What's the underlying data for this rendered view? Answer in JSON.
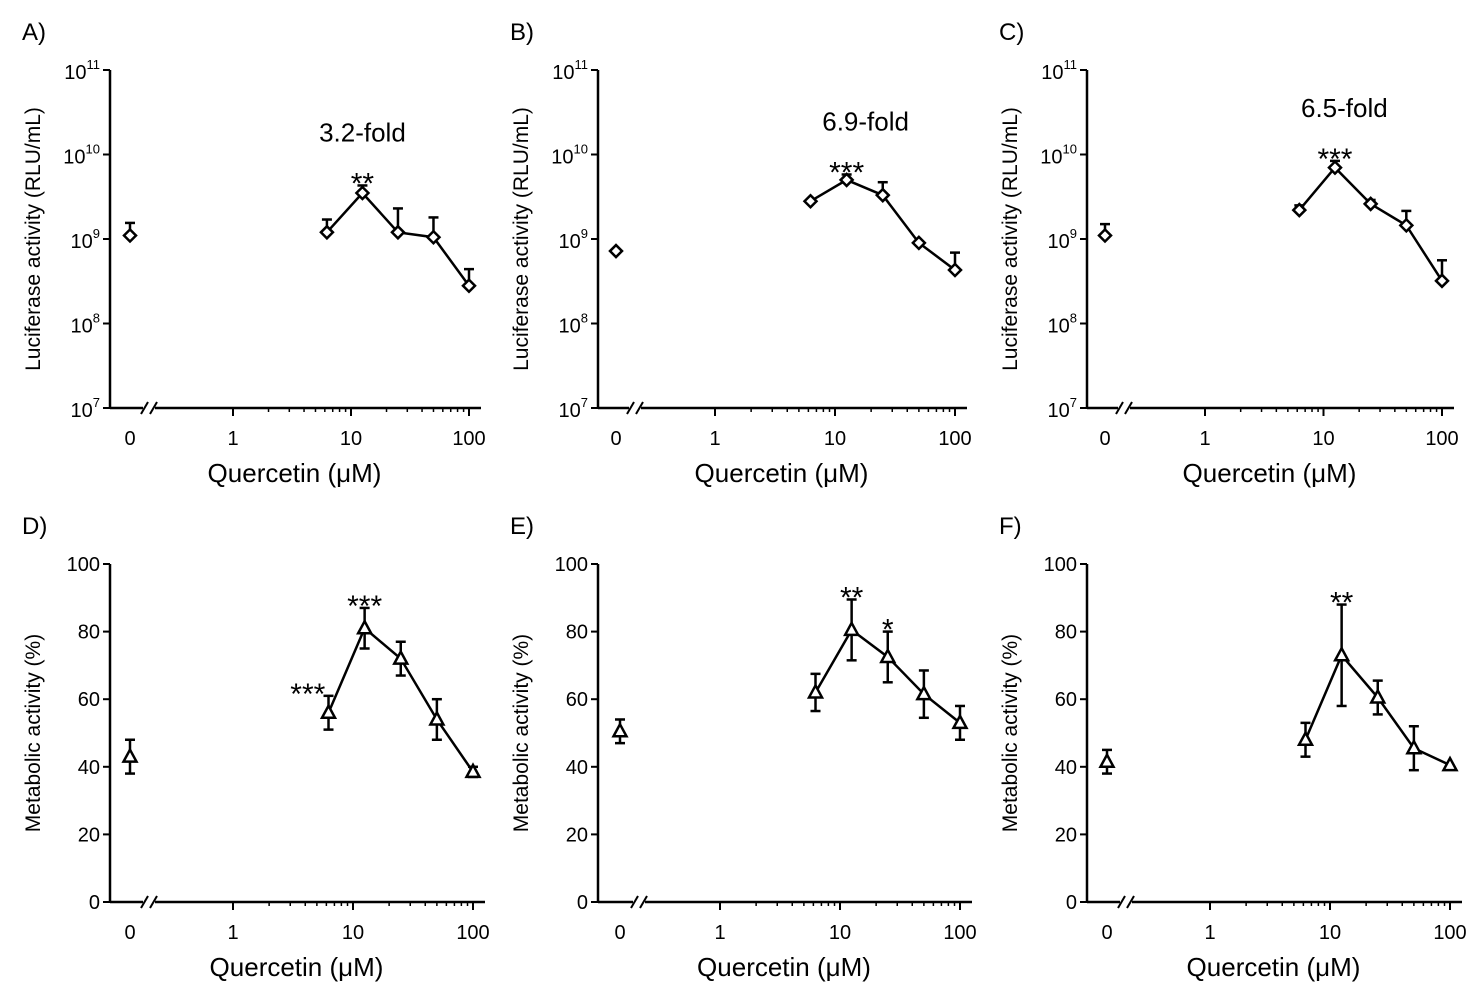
{
  "chart_data": [
    {
      "panel": "A)",
      "type": "line",
      "y_scale": "log",
      "xlabel": "Quercetin (μM)",
      "ylabel": "Luciferase activity (RLU/mL)",
      "ylim": [
        10000000,
        100000000000
      ],
      "xticks": [
        {
          "label": "0",
          "value": 0,
          "is_zero": true
        },
        {
          "label": "1",
          "value": 1
        },
        {
          "label": "10",
          "value": 10
        },
        {
          "label": "100",
          "value": 100
        }
      ],
      "yticks": [
        {
          "base": "10",
          "exp": "7",
          "value": 10000000
        },
        {
          "base": "10",
          "exp": "8",
          "value": 100000000
        },
        {
          "base": "10",
          "exp": "9",
          "value": 1000000000
        },
        {
          "base": "10",
          "exp": "10",
          "value": 10000000000
        },
        {
          "base": "10",
          "exp": "11",
          "value": 100000000000
        }
      ],
      "marker": "diamond",
      "control": {
        "x": 0,
        "y": 1100000000,
        "err": 450000000
      },
      "series": [
        {
          "x": 6.25,
          "y": 1200000000,
          "err": 500000000
        },
        {
          "x": 12.5,
          "y": 3500000000,
          "err": 800000000
        },
        {
          "x": 25,
          "y": 1200000000,
          "err": 1100000000
        },
        {
          "x": 50,
          "y": 1050000000,
          "err": 750000000
        },
        {
          "x": 100,
          "y": 280000000,
          "err": 160000000
        }
      ],
      "annotations": [
        {
          "text": "3.2-fold",
          "x": 12.5,
          "kind": "fold"
        },
        {
          "text": "**",
          "x": 12.5,
          "kind": "sig"
        }
      ]
    },
    {
      "panel": "B)",
      "type": "line",
      "y_scale": "log",
      "xlabel": "Quercetin (μM)",
      "ylabel": "Luciferase activity (RLU/mL)",
      "ylim": [
        10000000,
        100000000000
      ],
      "xticks": [
        {
          "label": "0",
          "value": 0,
          "is_zero": true
        },
        {
          "label": "1",
          "value": 1
        },
        {
          "label": "10",
          "value": 10
        },
        {
          "label": "100",
          "value": 100
        }
      ],
      "yticks": [
        {
          "base": "10",
          "exp": "7",
          "value": 10000000
        },
        {
          "base": "10",
          "exp": "8",
          "value": 100000000
        },
        {
          "base": "10",
          "exp": "9",
          "value": 1000000000
        },
        {
          "base": "10",
          "exp": "10",
          "value": 10000000000
        },
        {
          "base": "10",
          "exp": "11",
          "value": 100000000000
        }
      ],
      "marker": "diamond",
      "control": {
        "x": 0,
        "y": 720000000,
        "err": 0
      },
      "series": [
        {
          "x": 6.25,
          "y": 2800000000,
          "err": 0
        },
        {
          "x": 12.5,
          "y": 5000000000,
          "err": 800000000
        },
        {
          "x": 25,
          "y": 3300000000,
          "err": 1400000000
        },
        {
          "x": 50,
          "y": 900000000,
          "err": 0
        },
        {
          "x": 100,
          "y": 430000000,
          "err": 260000000
        }
      ],
      "annotations": [
        {
          "text": "6.9-fold",
          "x": 18,
          "kind": "fold"
        },
        {
          "text": "***",
          "x": 12.5,
          "kind": "sig"
        }
      ]
    },
    {
      "panel": "C)",
      "type": "line",
      "y_scale": "log",
      "xlabel": "Quercetin (μM)",
      "ylabel": "Luciferase activity (RLU/mL)",
      "ylim": [
        10000000,
        100000000000
      ],
      "xticks": [
        {
          "label": "0",
          "value": 0,
          "is_zero": true
        },
        {
          "label": "1",
          "value": 1
        },
        {
          "label": "10",
          "value": 10
        },
        {
          "label": "100",
          "value": 100
        }
      ],
      "yticks": [
        {
          "base": "10",
          "exp": "7",
          "value": 10000000
        },
        {
          "base": "10",
          "exp": "8",
          "value": 100000000
        },
        {
          "base": "10",
          "exp": "9",
          "value": 1000000000
        },
        {
          "base": "10",
          "exp": "10",
          "value": 10000000000
        },
        {
          "base": "10",
          "exp": "11",
          "value": 100000000000
        }
      ],
      "marker": "diamond",
      "control": {
        "x": 0,
        "y": 1100000000,
        "err": 400000000
      },
      "series": [
        {
          "x": 6.25,
          "y": 2200000000,
          "err": 300000000
        },
        {
          "x": 12.5,
          "y": 7000000000,
          "err": 1400000000
        },
        {
          "x": 25,
          "y": 2600000000,
          "err": 300000000
        },
        {
          "x": 50,
          "y": 1450000000,
          "err": 700000000
        },
        {
          "x": 100,
          "y": 320000000,
          "err": 240000000
        }
      ],
      "annotations": [
        {
          "text": "6.5-fold",
          "x": 15,
          "kind": "fold"
        },
        {
          "text": "***",
          "x": 12.5,
          "kind": "sig"
        }
      ]
    },
    {
      "panel": "D)",
      "type": "line",
      "y_scale": "linear",
      "xlabel": "Quercetin (μM)",
      "ylabel": "Metabolic activity (%)",
      "ylim": [
        0,
        100
      ],
      "xticks": [
        {
          "label": "0",
          "value": 0,
          "is_zero": true
        },
        {
          "label": "1",
          "value": 1
        },
        {
          "label": "10",
          "value": 10
        },
        {
          "label": "100",
          "value": 100
        }
      ],
      "yticks": [
        {
          "label": "0",
          "value": 0
        },
        {
          "label": "20",
          "value": 20
        },
        {
          "label": "40",
          "value": 40
        },
        {
          "label": "60",
          "value": 60
        },
        {
          "label": "80",
          "value": 80
        },
        {
          "label": "100",
          "value": 100
        }
      ],
      "marker": "triangle",
      "control": {
        "x": 0,
        "y": 43,
        "err": 5
      },
      "series": [
        {
          "x": 6.25,
          "y": 56,
          "err": 5
        },
        {
          "x": 12.5,
          "y": 81,
          "err": 6
        },
        {
          "x": 25,
          "y": 72,
          "err": 5
        },
        {
          "x": 50,
          "y": 54,
          "err": 6
        },
        {
          "x": 100,
          "y": 38.5,
          "err": 1.5
        }
      ],
      "annotations": [
        {
          "text": "***",
          "x": 4.2,
          "kind": "sig-left"
        },
        {
          "text": "***",
          "x": 12.5,
          "kind": "sig"
        }
      ]
    },
    {
      "panel": "E)",
      "type": "line",
      "y_scale": "linear",
      "xlabel": "Quercetin (μM)",
      "ylabel": "Metabolic activity (%)",
      "ylim": [
        0,
        100
      ],
      "xticks": [
        {
          "label": "0",
          "value": 0,
          "is_zero": true
        },
        {
          "label": "1",
          "value": 1
        },
        {
          "label": "10",
          "value": 10
        },
        {
          "label": "100",
          "value": 100
        }
      ],
      "yticks": [
        {
          "label": "0",
          "value": 0
        },
        {
          "label": "20",
          "value": 20
        },
        {
          "label": "40",
          "value": 40
        },
        {
          "label": "60",
          "value": 60
        },
        {
          "label": "80",
          "value": 80
        },
        {
          "label": "100",
          "value": 100
        }
      ],
      "marker": "triangle",
      "control": {
        "x": 0,
        "y": 50.5,
        "err": 3.5
      },
      "series": [
        {
          "x": 6.25,
          "y": 62,
          "err": 5.5
        },
        {
          "x": 12.5,
          "y": 80.5,
          "err": 9
        },
        {
          "x": 25,
          "y": 72.5,
          "err": 7.5
        },
        {
          "x": 50,
          "y": 61.5,
          "err": 7
        },
        {
          "x": 100,
          "y": 53,
          "err": 5
        }
      ],
      "annotations": [
        {
          "text": "**",
          "x": 12.5,
          "kind": "sig"
        },
        {
          "text": "*",
          "x": 25,
          "kind": "sig"
        }
      ]
    },
    {
      "panel": "F)",
      "type": "line",
      "y_scale": "linear",
      "xlabel": "Quercetin (μM)",
      "ylabel": "Metabolic activity (%)",
      "ylim": [
        0,
        100
      ],
      "xticks": [
        {
          "label": "0",
          "value": 0,
          "is_zero": true
        },
        {
          "label": "1",
          "value": 1
        },
        {
          "label": "10",
          "value": 10
        },
        {
          "label": "100",
          "value": 100
        }
      ],
      "yticks": [
        {
          "label": "0",
          "value": 0
        },
        {
          "label": "20",
          "value": 20
        },
        {
          "label": "40",
          "value": 40
        },
        {
          "label": "60",
          "value": 60
        },
        {
          "label": "80",
          "value": 80
        },
        {
          "label": "100",
          "value": 100
        }
      ],
      "marker": "triangle",
      "control": {
        "x": 0,
        "y": 41.5,
        "err": 3.5
      },
      "series": [
        {
          "x": 6.25,
          "y": 48,
          "err": 5
        },
        {
          "x": 12.5,
          "y": 73,
          "err": 15
        },
        {
          "x": 25,
          "y": 60.5,
          "err": 5
        },
        {
          "x": 50,
          "y": 45.5,
          "err": 6.5
        },
        {
          "x": 100,
          "y": 40.5,
          "err": 0
        }
      ],
      "annotations": [
        {
          "text": "**",
          "x": 12.5,
          "kind": "sig"
        }
      ]
    }
  ]
}
